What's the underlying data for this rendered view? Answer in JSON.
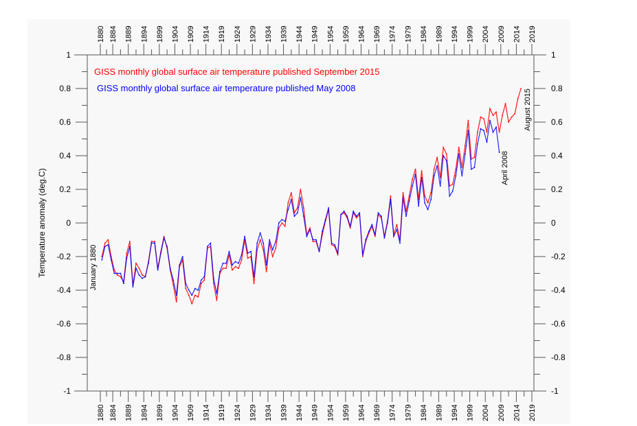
{
  "chart_data": {
    "type": "line",
    "title": "",
    "xlabel": "",
    "ylabel": "Temperature anomaly (deg.C)",
    "xlim": [
      1876,
      2020
    ],
    "ylim": [
      -1,
      1
    ],
    "grid": false,
    "x_ticks": [
      1880,
      1884,
      1889,
      1894,
      1899,
      1904,
      1909,
      1914,
      1919,
      1924,
      1929,
      1934,
      1939,
      1944,
      1949,
      1954,
      1959,
      1964,
      1969,
      1974,
      1979,
      1984,
      1989,
      1994,
      1999,
      2004,
      2009,
      2014,
      2019
    ],
    "y_ticks": [
      1,
      0.8,
      0.6,
      0.4,
      0.2,
      0,
      -0.2,
      -0.4,
      -0.6,
      -0.8,
      -1
    ],
    "y_tick_labels": [
      "1",
      "0.8",
      "0.6",
      "0.4",
      "0.2",
      "0",
      "-0.2",
      "-0.4",
      "-0.6",
      "-0.8",
      "-1"
    ],
    "legend_placement": "top-left",
    "series": [
      {
        "name": "GISS monthly global surface air temperature published September 2015",
        "color": "#ff0000",
        "start_year": 1880,
        "values": [
          -0.2,
          -0.12,
          -0.1,
          -0.2,
          -0.28,
          -0.31,
          -0.32,
          -0.35,
          -0.18,
          -0.11,
          -0.37,
          -0.24,
          -0.27,
          -0.31,
          -0.32,
          -0.23,
          -0.11,
          -0.11,
          -0.27,
          -0.17,
          -0.08,
          -0.15,
          -0.28,
          -0.37,
          -0.47,
          -0.26,
          -0.22,
          -0.39,
          -0.43,
          -0.48,
          -0.43,
          -0.44,
          -0.36,
          -0.34,
          -0.15,
          -0.14,
          -0.36,
          -0.46,
          -0.3,
          -0.27,
          -0.27,
          -0.19,
          -0.28,
          -0.26,
          -0.27,
          -0.22,
          -0.1,
          -0.21,
          -0.2,
          -0.36,
          -0.16,
          -0.1,
          -0.16,
          -0.29,
          -0.12,
          -0.2,
          -0.15,
          -0.03,
          0.0,
          -0.02,
          0.12,
          0.18,
          0.06,
          0.09,
          0.2,
          0.09,
          -0.07,
          -0.03,
          -0.11,
          -0.11,
          -0.17,
          -0.07,
          0.01,
          0.08,
          -0.13,
          -0.14,
          -0.19,
          0.05,
          0.06,
          0.03,
          -0.03,
          0.06,
          0.03,
          0.05,
          -0.2,
          -0.11,
          -0.06,
          -0.02,
          -0.08,
          0.05,
          0.03,
          -0.08,
          0.01,
          0.16,
          -0.07,
          -0.01,
          -0.1,
          0.18,
          0.07,
          0.16,
          0.26,
          0.32,
          0.14,
          0.31,
          0.16,
          0.12,
          0.18,
          0.32,
          0.39,
          0.27,
          0.45,
          0.41,
          0.22,
          0.23,
          0.32,
          0.45,
          0.33,
          0.46,
          0.61,
          0.38,
          0.39,
          0.54,
          0.63,
          0.62,
          0.54,
          0.68,
          0.64,
          0.66,
          0.54,
          0.64,
          0.71,
          0.6,
          0.63,
          0.65,
          0.74,
          0.8
        ]
      },
      {
        "name": "GISS monthly global surface air temperature published May 2008",
        "color": "#0000ff",
        "start_year": 1880,
        "values": [
          -0.22,
          -0.14,
          -0.13,
          -0.22,
          -0.3,
          -0.3,
          -0.3,
          -0.36,
          -0.21,
          -0.14,
          -0.38,
          -0.27,
          -0.31,
          -0.33,
          -0.32,
          -0.24,
          -0.12,
          -0.12,
          -0.28,
          -0.18,
          -0.09,
          -0.14,
          -0.27,
          -0.34,
          -0.43,
          -0.25,
          -0.2,
          -0.36,
          -0.4,
          -0.43,
          -0.39,
          -0.4,
          -0.34,
          -0.32,
          -0.14,
          -0.12,
          -0.33,
          -0.42,
          -0.29,
          -0.24,
          -0.24,
          -0.17,
          -0.25,
          -0.23,
          -0.24,
          -0.19,
          -0.08,
          -0.18,
          -0.17,
          -0.32,
          -0.12,
          -0.06,
          -0.12,
          -0.25,
          -0.1,
          -0.16,
          -0.11,
          0.0,
          0.02,
          0.01,
          0.08,
          0.14,
          0.04,
          0.06,
          0.15,
          0.04,
          -0.08,
          -0.04,
          -0.1,
          -0.1,
          -0.17,
          -0.05,
          0.02,
          0.09,
          -0.12,
          -0.13,
          -0.18,
          0.05,
          0.07,
          0.04,
          -0.02,
          0.07,
          0.04,
          0.06,
          -0.19,
          -0.1,
          -0.05,
          -0.01,
          -0.07,
          0.06,
          0.04,
          -0.09,
          0.0,
          0.14,
          -0.08,
          -0.04,
          -0.12,
          0.15,
          0.04,
          0.13,
          0.22,
          0.29,
          0.1,
          0.27,
          0.12,
          0.08,
          0.14,
          0.28,
          0.34,
          0.22,
          0.4,
          0.37,
          0.16,
          0.19,
          0.28,
          0.41,
          0.28,
          0.41,
          0.55,
          0.32,
          0.33,
          0.47,
          0.56,
          0.55,
          0.48,
          0.61,
          0.54,
          0.57,
          0.42
        ]
      }
    ],
    "annotations": [
      "January 1880",
      "April 2008",
      "August 2015"
    ]
  }
}
